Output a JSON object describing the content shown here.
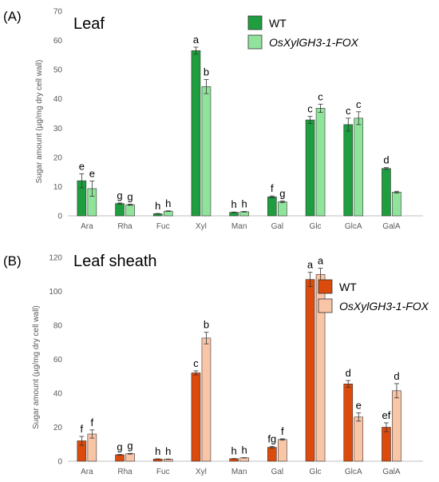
{
  "chart_data": [
    {
      "type": "bar",
      "panel_label": "(A)",
      "title": "Leaf",
      "ylabel": "Sugar amount (µg/mg dry cell wall)",
      "ylim": [
        0,
        70
      ],
      "yticks": [
        0,
        10,
        20,
        30,
        40,
        50,
        60,
        70
      ],
      "categories": [
        "Ara",
        "Rha",
        "Fuc",
        "Xyl",
        "Man",
        "Gal",
        "Glc",
        "GlcA",
        "GalA"
      ],
      "legend_position": "top-right",
      "series": [
        {
          "name": "WT",
          "color": "#1e9e3e",
          "values": [
            12,
            4.2,
            0.7,
            56.5,
            1.2,
            6.5,
            32.8,
            31.2,
            16.2
          ],
          "errors": [
            2.4,
            0.2,
            0.1,
            1.2,
            0.1,
            0.3,
            1.2,
            2.2,
            0.3
          ],
          "labels": [
            "e",
            "g",
            "h",
            "a",
            "h",
            "f",
            "c",
            "c",
            "d"
          ]
        },
        {
          "name": "OsXylGH3-1-FOX",
          "color": "#8fe39b",
          "values": [
            9.3,
            3.8,
            1.6,
            44.2,
            1.4,
            4.8,
            36.8,
            33.4,
            8.1
          ],
          "errors": [
            2.6,
            0.2,
            0.1,
            2.4,
            0.1,
            0.3,
            1.4,
            2.2,
            0.3
          ],
          "labels": [
            "e",
            "g",
            "h",
            "b",
            "h",
            "g",
            "c",
            "c",
            ""
          ]
        }
      ]
    },
    {
      "type": "bar",
      "panel_label": "(B)",
      "title": "Leaf sheath",
      "ylabel": "Sugar amount (µg/mg dry cell wall)",
      "ylim": [
        0,
        120
      ],
      "yticks": [
        0,
        20,
        40,
        60,
        80,
        100,
        120
      ],
      "categories": [
        "Ara",
        "Rha",
        "Fuc",
        "Xyl",
        "Man",
        "Gal",
        "Glc",
        "GlcA",
        "GalA"
      ],
      "legend_position": "top-right",
      "series": [
        {
          "name": "WT",
          "color": "#dc4b0c",
          "values": [
            12,
            3.8,
            1.3,
            52,
            1.5,
            8.2,
            107,
            45.5,
            20
          ],
          "errors": [
            2.6,
            0.2,
            0.1,
            1.2,
            0.1,
            0.5,
            4.2,
            2.0,
            2.6
          ],
          "labels": [
            "f",
            "g",
            "h",
            "c",
            "h",
            "fg",
            "a",
            "d",
            "ef"
          ]
        },
        {
          "name": "OsXylGH3-1-FOX",
          "color": "#f9c5a7",
          "values": [
            16,
            4.4,
            1.2,
            72.5,
            2,
            12.8,
            110,
            26,
            41.5
          ],
          "errors": [
            2.4,
            0.2,
            0.1,
            3.4,
            0.1,
            0.4,
            3.6,
            2.4,
            4.2
          ],
          "labels": [
            "f",
            "g",
            "h",
            "b",
            "h",
            "f",
            "a",
            "e",
            "d"
          ]
        }
      ]
    }
  ]
}
